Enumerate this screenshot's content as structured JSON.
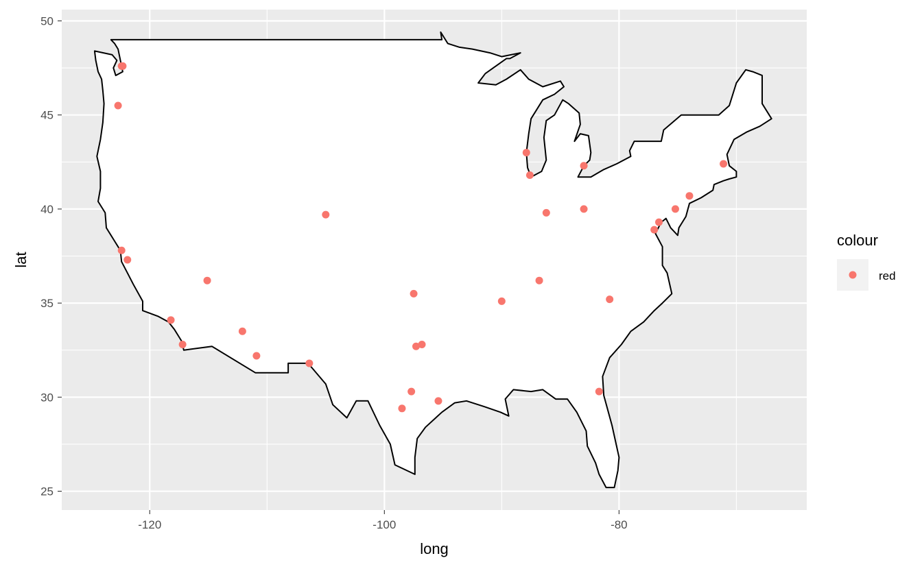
{
  "chart_data": {
    "type": "scatter",
    "title": "",
    "xlabel": "long",
    "ylabel": "lat",
    "xlim": [
      -127.5,
      -64
    ],
    "ylim": [
      24.0,
      50.6
    ],
    "x_ticks": [
      -120,
      -100,
      -80
    ],
    "x_tick_labels": [
      "-120",
      "-100",
      "-80"
    ],
    "y_ticks": [
      25,
      30,
      35,
      40,
      45,
      50
    ],
    "y_tick_labels": [
      "25",
      "30",
      "35",
      "40",
      "45",
      "50"
    ],
    "grid": true,
    "legend": {
      "title": "colour",
      "position": "right",
      "entries": [
        {
          "label": "red",
          "color": "#F8766D"
        }
      ]
    },
    "colors": {
      "point": "#F8766D",
      "panel": "#EBEBEB",
      "grid": "#FFFFFF",
      "outline": "#000000",
      "fill": "#FFFFFF"
    },
    "series": [
      {
        "name": "red",
        "points": [
          {
            "x": -122.3,
            "y": 47.6
          },
          {
            "x": -122.4,
            "y": 47.6
          },
          {
            "x": -122.7,
            "y": 45.5
          },
          {
            "x": -122.4,
            "y": 37.8
          },
          {
            "x": -121.9,
            "y": 37.3
          },
          {
            "x": -118.2,
            "y": 34.1
          },
          {
            "x": -117.2,
            "y": 32.8
          },
          {
            "x": -115.1,
            "y": 36.2
          },
          {
            "x": -112.1,
            "y": 33.5
          },
          {
            "x": -110.9,
            "y": 32.2
          },
          {
            "x": -106.4,
            "y": 31.8
          },
          {
            "x": -105.0,
            "y": 39.7
          },
          {
            "x": -98.5,
            "y": 29.4
          },
          {
            "x": -97.7,
            "y": 30.3
          },
          {
            "x": -97.5,
            "y": 35.5
          },
          {
            "x": -97.3,
            "y": 32.7
          },
          {
            "x": -96.8,
            "y": 32.8
          },
          {
            "x": -95.4,
            "y": 29.8
          },
          {
            "x": -90.0,
            "y": 35.1
          },
          {
            "x": -87.9,
            "y": 43.0
          },
          {
            "x": -87.6,
            "y": 41.8
          },
          {
            "x": -86.8,
            "y": 36.2
          },
          {
            "x": -86.2,
            "y": 39.8
          },
          {
            "x": -83.0,
            "y": 42.3
          },
          {
            "x": -83.0,
            "y": 40.0
          },
          {
            "x": -81.7,
            "y": 30.3
          },
          {
            "x": -80.8,
            "y": 35.2
          },
          {
            "x": -77.0,
            "y": 38.9
          },
          {
            "x": -76.6,
            "y": 39.3
          },
          {
            "x": -75.2,
            "y": 40.0
          },
          {
            "x": -74.0,
            "y": 40.7
          },
          {
            "x": -71.1,
            "y": 42.4
          }
        ]
      }
    ],
    "outline_polygon": [
      [
        -124.7,
        48.4
      ],
      [
        -124.6,
        47.9
      ],
      [
        -124.4,
        47.3
      ],
      [
        -124.1,
        46.9
      ],
      [
        -124.0,
        46.3
      ],
      [
        -123.9,
        45.6
      ],
      [
        -124.0,
        44.6
      ],
      [
        -124.2,
        43.7
      ],
      [
        -124.5,
        42.8
      ],
      [
        -124.2,
        42.0
      ],
      [
        -124.2,
        41.1
      ],
      [
        -124.4,
        40.4
      ],
      [
        -123.8,
        39.8
      ],
      [
        -123.7,
        39.0
      ],
      [
        -123.0,
        38.3
      ],
      [
        -122.5,
        37.8
      ],
      [
        -122.4,
        37.2
      ],
      [
        -121.9,
        36.6
      ],
      [
        -121.4,
        36.0
      ],
      [
        -120.6,
        35.1
      ],
      [
        -120.6,
        34.6
      ],
      [
        -119.3,
        34.3
      ],
      [
        -118.4,
        34.0
      ],
      [
        -117.9,
        33.6
      ],
      [
        -117.3,
        33.0
      ],
      [
        -117.1,
        32.5
      ],
      [
        -114.7,
        32.7
      ],
      [
        -111.0,
        31.3
      ],
      [
        -108.2,
        31.3
      ],
      [
        -108.2,
        31.8
      ],
      [
        -106.5,
        31.8
      ],
      [
        -105.0,
        30.7
      ],
      [
        -104.4,
        29.6
      ],
      [
        -103.2,
        28.9
      ],
      [
        -102.4,
        29.8
      ],
      [
        -101.4,
        29.8
      ],
      [
        -100.4,
        28.5
      ],
      [
        -99.5,
        27.5
      ],
      [
        -99.1,
        26.4
      ],
      [
        -97.4,
        25.9
      ],
      [
        -97.4,
        26.8
      ],
      [
        -97.2,
        27.8
      ],
      [
        -96.5,
        28.4
      ],
      [
        -95.1,
        29.2
      ],
      [
        -94.0,
        29.7
      ],
      [
        -93.0,
        29.8
      ],
      [
        -91.5,
        29.5
      ],
      [
        -90.1,
        29.2
      ],
      [
        -89.4,
        29.0
      ],
      [
        -89.7,
        29.9
      ],
      [
        -89.0,
        30.4
      ],
      [
        -87.5,
        30.3
      ],
      [
        -86.5,
        30.4
      ],
      [
        -85.4,
        29.9
      ],
      [
        -84.4,
        29.9
      ],
      [
        -83.6,
        29.2
      ],
      [
        -82.8,
        28.2
      ],
      [
        -82.7,
        27.4
      ],
      [
        -82.0,
        26.5
      ],
      [
        -81.7,
        25.9
      ],
      [
        -81.1,
        25.2
      ],
      [
        -80.4,
        25.2
      ],
      [
        -80.1,
        26.1
      ],
      [
        -80.0,
        26.8
      ],
      [
        -80.6,
        28.5
      ],
      [
        -81.3,
        30.1
      ],
      [
        -81.4,
        31.1
      ],
      [
        -80.8,
        32.1
      ],
      [
        -79.8,
        32.8
      ],
      [
        -79.0,
        33.5
      ],
      [
        -77.9,
        34.0
      ],
      [
        -77.0,
        34.6
      ],
      [
        -76.3,
        35.0
      ],
      [
        -75.5,
        35.5
      ],
      [
        -75.9,
        36.6
      ],
      [
        -76.3,
        37.0
      ],
      [
        -76.3,
        38.0
      ],
      [
        -76.9,
        38.7
      ],
      [
        -76.4,
        39.3
      ],
      [
        -76.0,
        39.5
      ],
      [
        -75.6,
        39.0
      ],
      [
        -75.0,
        38.6
      ],
      [
        -74.9,
        39.0
      ],
      [
        -74.3,
        39.6
      ],
      [
        -74.0,
        40.3
      ],
      [
        -73.0,
        40.6
      ],
      [
        -72.0,
        41.0
      ],
      [
        -71.9,
        41.3
      ],
      [
        -71.1,
        41.5
      ],
      [
        -70.6,
        41.6
      ],
      [
        -70.0,
        41.7
      ],
      [
        -70.0,
        42.0
      ],
      [
        -70.6,
        42.3
      ],
      [
        -70.8,
        42.9
      ],
      [
        -70.2,
        43.7
      ],
      [
        -69.1,
        44.1
      ],
      [
        -68.0,
        44.4
      ],
      [
        -67.0,
        44.8
      ],
      [
        -67.8,
        45.6
      ],
      [
        -67.8,
        47.1
      ],
      [
        -68.6,
        47.3
      ],
      [
        -69.2,
        47.4
      ],
      [
        -70.0,
        46.7
      ],
      [
        -70.6,
        45.5
      ],
      [
        -71.5,
        45.0
      ],
      [
        -74.7,
        45.0
      ],
      [
        -76.2,
        44.2
      ],
      [
        -76.4,
        43.6
      ],
      [
        -78.7,
        43.6
      ],
      [
        -79.1,
        43.1
      ],
      [
        -79.0,
        42.8
      ],
      [
        -80.2,
        42.4
      ],
      [
        -81.3,
        42.1
      ],
      [
        -82.4,
        41.7
      ],
      [
        -83.5,
        41.7
      ],
      [
        -83.0,
        42.3
      ],
      [
        -82.5,
        42.6
      ],
      [
        -82.4,
        43.0
      ],
      [
        -82.6,
        43.9
      ],
      [
        -83.3,
        44.0
      ],
      [
        -83.8,
        43.6
      ],
      [
        -83.3,
        44.5
      ],
      [
        -83.4,
        45.1
      ],
      [
        -84.3,
        45.6
      ],
      [
        -84.8,
        45.8
      ],
      [
        -85.5,
        45.0
      ],
      [
        -86.2,
        44.7
      ],
      [
        -86.4,
        43.8
      ],
      [
        -86.2,
        42.6
      ],
      [
        -86.6,
        42.0
      ],
      [
        -87.5,
        41.7
      ],
      [
        -87.8,
        42.2
      ],
      [
        -87.9,
        43.0
      ],
      [
        -87.7,
        44.0
      ],
      [
        -87.5,
        44.8
      ],
      [
        -86.5,
        45.8
      ],
      [
        -85.5,
        46.1
      ],
      [
        -84.7,
        46.5
      ],
      [
        -85.0,
        46.8
      ],
      [
        -86.5,
        46.5
      ],
      [
        -87.7,
        46.9
      ],
      [
        -88.4,
        47.4
      ],
      [
        -89.6,
        46.9
      ],
      [
        -90.5,
        46.6
      ],
      [
        -92.0,
        46.7
      ],
      [
        -91.4,
        47.2
      ],
      [
        -89.6,
        48.0
      ],
      [
        -89.3,
        48.0
      ],
      [
        -88.4,
        48.3
      ],
      [
        -90.0,
        48.1
      ],
      [
        -91.0,
        48.3
      ],
      [
        -92.5,
        48.5
      ],
      [
        -93.6,
        48.6
      ],
      [
        -94.6,
        48.8
      ],
      [
        -95.2,
        49.4
      ],
      [
        -95.1,
        49.0
      ],
      [
        -123.3,
        49.0
      ],
      [
        -123.0,
        48.8
      ],
      [
        -122.7,
        48.5
      ],
      [
        -122.5,
        47.9
      ],
      [
        -122.3,
        47.3
      ],
      [
        -122.9,
        47.1
      ],
      [
        -123.1,
        47.5
      ],
      [
        -122.8,
        47.9
      ],
      [
        -123.2,
        48.2
      ],
      [
        -124.7,
        48.4
      ]
    ]
  }
}
